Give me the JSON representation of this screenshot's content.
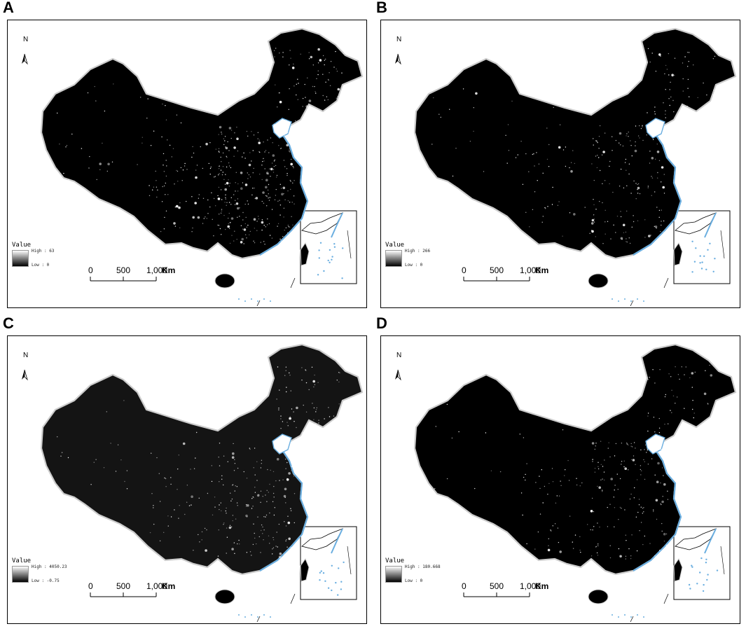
{
  "panels": [
    {
      "letter": "A",
      "legend_title": "Value",
      "high_label": "High : 63",
      "low_label": "Low : 0",
      "fill": "#000000",
      "lights": 1.0
    },
    {
      "letter": "B",
      "legend_title": "Value",
      "high_label": "High : 266",
      "low_label": "Low : 0",
      "fill": "#000000",
      "lights": 0.55
    },
    {
      "letter": "C",
      "legend_title": "Value",
      "high_label": "High : 4050.23",
      "low_label": "Low : -0.75",
      "fill": "#141414",
      "lights": 0.6
    },
    {
      "letter": "D",
      "legend_title": "Value",
      "high_label": "High : 180.668",
      "low_label": "Low : 0",
      "fill": "#000000",
      "lights": 0.55
    }
  ],
  "north_arrow_label": "N",
  "scale_bar": {
    "ticks": [
      "0",
      "500",
      "1,000"
    ],
    "unit": "Km"
  },
  "colors": {
    "water": "#6aaee0",
    "border": "#cccccc",
    "light": "#ffffff"
  }
}
